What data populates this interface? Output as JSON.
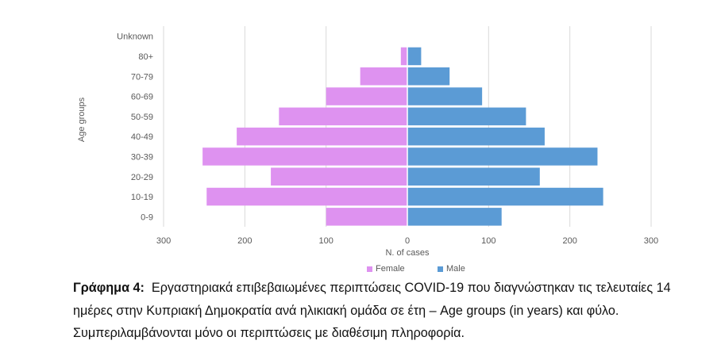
{
  "chart_data": {
    "type": "bar",
    "orientation": "horizontal-diverging",
    "categories": [
      "Unknown",
      "80+",
      "70-79",
      "60-69",
      "50-59",
      "40-49",
      "30-39",
      "20-29",
      "10-19",
      "0-9"
    ],
    "series": [
      {
        "name": "Female",
        "values": [
          0,
          8,
          58,
          100,
          158,
          210,
          252,
          168,
          247,
          100
        ],
        "color": "#de92f0"
      },
      {
        "name": "Male",
        "values": [
          0,
          17,
          52,
          92,
          146,
          169,
          234,
          163,
          241,
          116
        ],
        "color": "#5b9bd5"
      }
    ],
    "xlabel": "N. of cases",
    "ylabel": "Age groups",
    "xlim": [
      -300,
      300
    ],
    "xticks": [
      "300",
      "200",
      "100",
      "0",
      "100",
      "200",
      "300"
    ],
    "grid": true,
    "legend_position": "bottom"
  },
  "caption": {
    "label": "Γράφημα 4:",
    "text": "Εργαστηριακά επιβεβαιωμένες περιπτώσεις COVID-19 που διαγνώστηκαν τις τελευταίες 14 ημέρες στην Κυπριακή Δημοκρατία ανά ηλικιακή ομάδα σε έτη – Age groups (in years) και φύλο. Συμπεριλαμβάνονται μόνο οι περιπτώσεις με διαθέσιμη πληροφορία."
  }
}
